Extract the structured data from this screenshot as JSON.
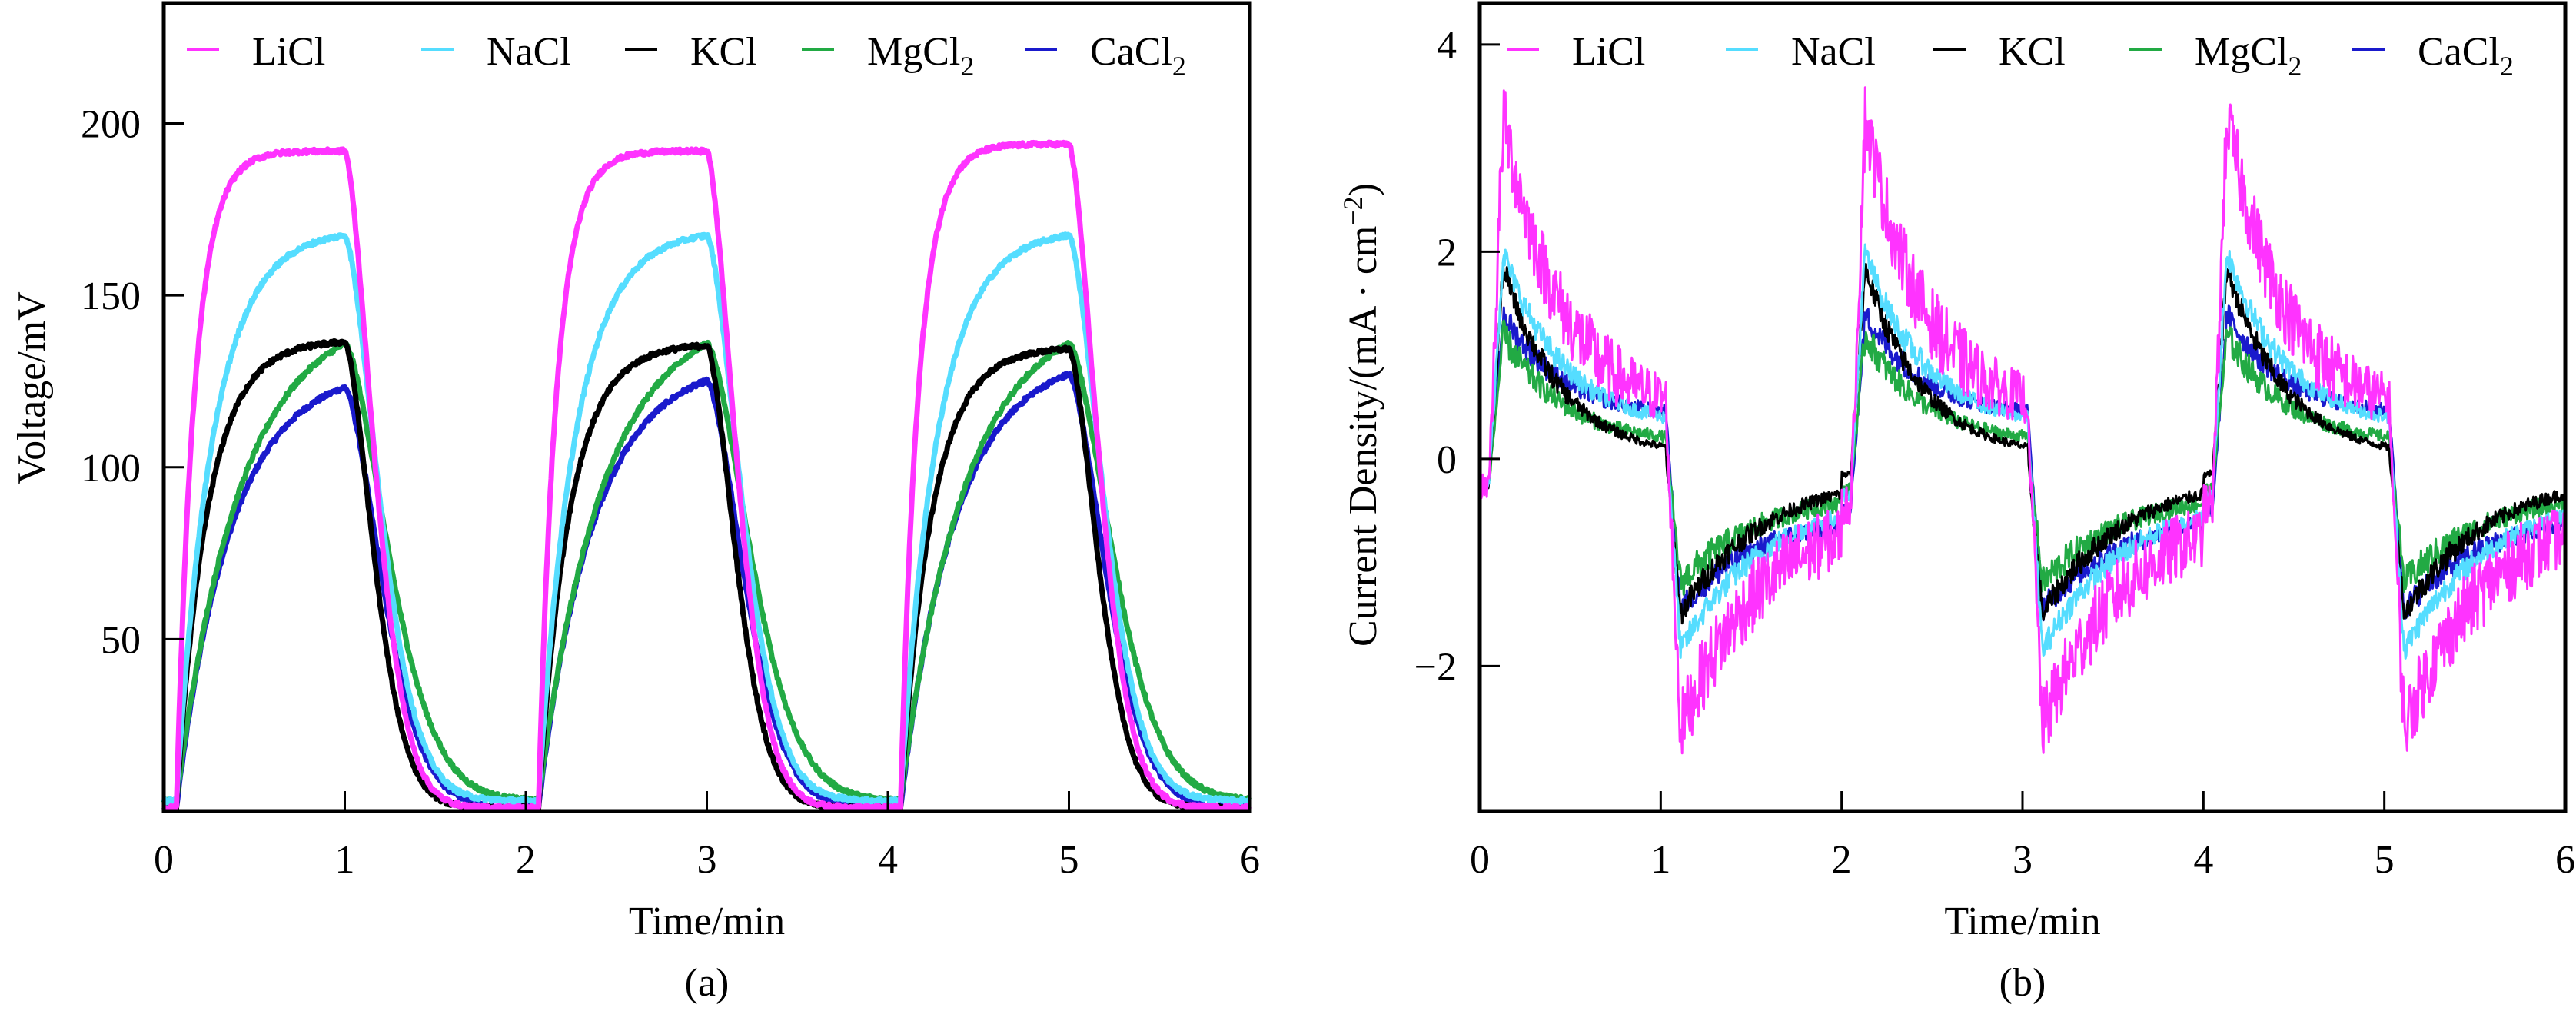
{
  "figure": {
    "panels": [
      "(a)",
      "(b)"
    ]
  },
  "legend": [
    {
      "name": "LiCl",
      "base": "LiCl",
      "sub": "",
      "color": "#ff33ff"
    },
    {
      "name": "NaCl",
      "base": "NaCl",
      "sub": "",
      "color": "#55ddff"
    },
    {
      "name": "KCl",
      "base": "KCl",
      "sub": "",
      "color": "#000000"
    },
    {
      "name": "MgCl2",
      "base": "MgCl",
      "sub": "2",
      "color": "#22aa44"
    },
    {
      "name": "CaCl2",
      "base": "CaCl",
      "sub": "2",
      "color": "#1a1acc"
    }
  ],
  "chart_data": [
    {
      "type": "line",
      "panel": "(a)",
      "title": "",
      "xlabel": "Time/min",
      "ylabel": "Voltage/mV",
      "xlim": [
        0,
        6
      ],
      "ylim": [
        0,
        235
      ],
      "xticks": [
        0,
        1,
        2,
        3,
        4,
        5,
        6
      ],
      "yticks": [
        50,
        100,
        150,
        200
      ],
      "grid": false,
      "legend_position": "top",
      "cycle": {
        "period_min": 2,
        "on_duration_min": 1,
        "first_on_min": 0.1,
        "cycles": 3
      },
      "series": [
        {
          "name": "LiCl",
          "color": "#ff33ff",
          "plateau_mV": [
            192,
            192,
            194
          ],
          "rise_tau_min": 0.1,
          "decay_tau_min": 0.22,
          "baseline_mV": 1
        },
        {
          "name": "NaCl",
          "color": "#55ddff",
          "plateau_mV": [
            169,
            169,
            169
          ],
          "rise_tau_min": 0.2,
          "decay_tau_min": 0.26,
          "baseline_mV": 3
        },
        {
          "name": "KCl",
          "color": "#000000",
          "plateau_mV": [
            137,
            136,
            135
          ],
          "rise_tau_min": 0.17,
          "decay_tau_min": 0.22,
          "baseline_mV": 1
        },
        {
          "name": "MgCl2",
          "color": "#22aa44",
          "plateau_mV": [
            146,
            146,
            146
          ],
          "rise_tau_min": 0.35,
          "decay_tau_min": 0.33,
          "baseline_mV": 3
        },
        {
          "name": "CaCl2",
          "color": "#1a1acc",
          "plateau_mV": [
            129,
            131,
            133
          ],
          "rise_tau_min": 0.3,
          "decay_tau_min": 0.28,
          "baseline_mV": 1
        }
      ]
    },
    {
      "type": "line",
      "panel": "(b)",
      "title": "",
      "xlabel": "Time/min",
      "ylabel": "Current Density/(mA · cm⁻²)",
      "ylabel_base": "Current Density/(mA · cm",
      "ylabel_sup": "−2",
      "ylabel_end": ")",
      "xlim": [
        0,
        6
      ],
      "ylim": [
        -3.4,
        4.4
      ],
      "xticks": [
        0,
        1,
        2,
        3,
        4,
        5,
        6
      ],
      "yticks": [
        -2,
        0,
        2,
        4
      ],
      "grid": false,
      "legend_position": "top",
      "cycle": {
        "period_min": 2,
        "on_duration_min": 1,
        "first_on_min": 0.05,
        "cycles": 3
      },
      "series": [
        {
          "name": "LiCl",
          "color": "#ff33ff",
          "peak_pos": 3.3,
          "end_pos": 0.4,
          "peak_neg": -2.6,
          "end_neg": -0.45,
          "noise": 0.35
        },
        {
          "name": "NaCl",
          "color": "#55ddff",
          "peak_pos": 2.0,
          "end_pos": 0.3,
          "peak_neg": -1.85,
          "end_neg": -0.35,
          "noise": 0.12
        },
        {
          "name": "KCl",
          "color": "#000000",
          "peak_pos": 1.85,
          "end_pos": 0.0,
          "peak_neg": -1.5,
          "end_neg": -0.15,
          "noise": 0.12
        },
        {
          "name": "MgCl2",
          "color": "#22aa44",
          "peak_pos": 1.2,
          "end_pos": 0.15,
          "peak_neg": -1.2,
          "end_neg": -0.3,
          "noise": 0.15
        },
        {
          "name": "CaCl2",
          "color": "#1a1acc",
          "peak_pos": 1.4,
          "end_pos": 0.4,
          "peak_neg": -1.45,
          "end_neg": -0.5,
          "noise": 0.12
        }
      ]
    }
  ]
}
